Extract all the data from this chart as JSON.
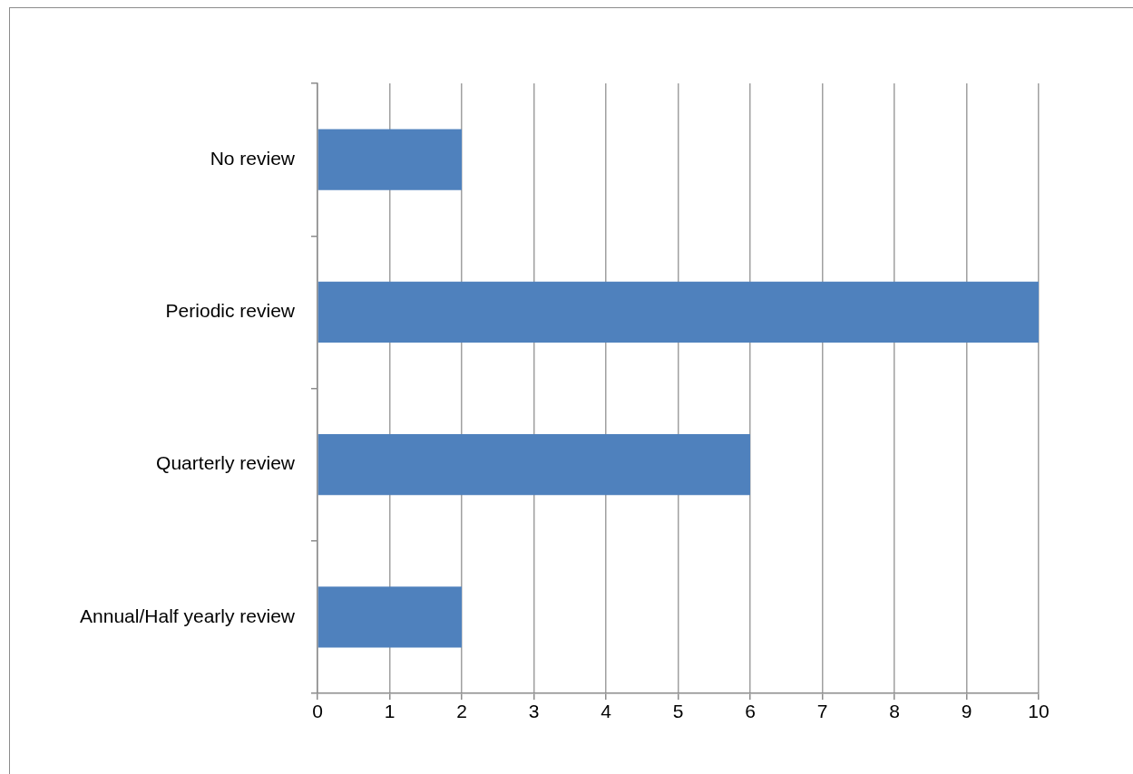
{
  "chart_data": {
    "type": "bar",
    "orientation": "horizontal",
    "categories": [
      "No review",
      "Periodic review",
      "Quarterly review",
      "Annual/Half yearly review"
    ],
    "values": [
      2,
      10,
      6,
      2
    ],
    "color": "#4f81bd",
    "xlim": [
      0,
      10
    ],
    "xticks": [
      0,
      1,
      2,
      3,
      4,
      5,
      6,
      7,
      8,
      9,
      10
    ],
    "grid": "x"
  }
}
